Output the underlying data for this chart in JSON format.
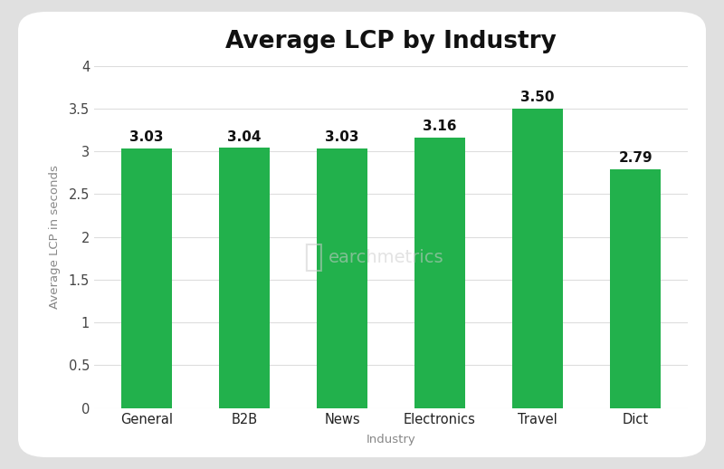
{
  "title": "Average LCP by Industry",
  "xlabel": "Industry",
  "ylabel": "Average LCP in seconds",
  "categories": [
    "General",
    "B2B",
    "News",
    "Electronics",
    "Travel",
    "Dict"
  ],
  "values": [
    3.03,
    3.04,
    3.03,
    3.16,
    3.5,
    2.79
  ],
  "bar_color": "#22b14c",
  "ylim": [
    0,
    4
  ],
  "yticks": [
    0,
    0.5,
    1.0,
    1.5,
    2.0,
    2.5,
    3.0,
    3.5,
    4.0
  ],
  "ytick_labels": [
    "0",
    "0.5",
    "1",
    "1.5",
    "2",
    "2.5",
    "3",
    "3.5",
    "4"
  ],
  "title_fontsize": 19,
  "label_fontsize": 9.5,
  "tick_fontsize": 10.5,
  "value_fontsize": 11,
  "background_color": "#ffffff",
  "outer_background": "#e0e0e0",
  "watermark_text": "earchmetrics",
  "bar_width": 0.52
}
